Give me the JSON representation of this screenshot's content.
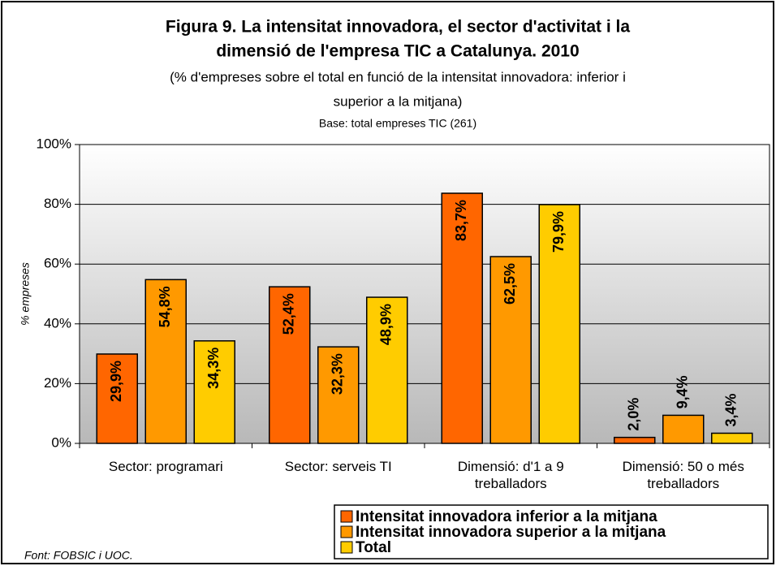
{
  "chart_data": {
    "type": "bar",
    "title": [
      "Figura 9. La intensitat innovadora, el sector d'activitat i la",
      "dimensió de l'empresa TIC a Catalunya. 2010"
    ],
    "subtitle": [
      "(% d'empreses sobre el total en funció de la intensitat innovadora: inferior  i",
      "superior a la mitjana)"
    ],
    "base_note": "Base: total empreses TIC (261)",
    "y_label": "% empreses",
    "source": "Font: FOBSIC i UOC.",
    "categories": [
      "Sector: programari",
      "Sector: serveis TI",
      "Dimensió: d'1 a 9 treballadors",
      "Dimensió: 50 o més treballadors"
    ],
    "series": [
      {
        "name": "Intensitat innovadora inferior a la mitjana",
        "color": "#ff6600",
        "values": [
          29.9,
          52.4,
          83.7,
          2.0
        ],
        "value_labels": [
          "29,9%",
          "52,4%",
          "83,7%",
          "2,0%"
        ]
      },
      {
        "name": "Intensitat innovadora superior a la mitjana",
        "color": "#ff9900",
        "values": [
          54.8,
          32.3,
          62.5,
          9.4
        ],
        "value_labels": [
          "54,8%",
          "32,3%",
          "62,5%",
          "9,4%"
        ]
      },
      {
        "name": "Total",
        "color": "#ffcc00",
        "values": [
          34.3,
          48.9,
          79.9,
          3.4
        ],
        "value_labels": [
          "34,3%",
          "48,9%",
          "79,9%",
          "3,4%"
        ]
      }
    ],
    "ylim": [
      0,
      100
    ],
    "yticks": [
      {
        "value": 0,
        "label": "0%"
      },
      {
        "value": 20,
        "label": "20%"
      },
      {
        "value": 40,
        "label": "40%"
      },
      {
        "value": 60,
        "label": "60%"
      },
      {
        "value": 80,
        "label": "80%"
      },
      {
        "value": 100,
        "label": "100%"
      }
    ],
    "grid": true
  }
}
